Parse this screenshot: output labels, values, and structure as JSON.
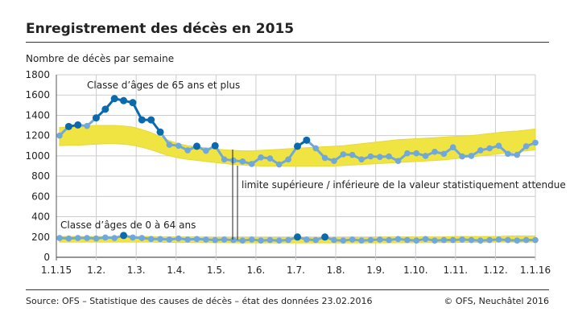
{
  "title": "Enregistrement des décès en 2015",
  "source": "Source: OFS – Statistique des causes de décès – état des données 23.02.2016",
  "copyright": "© OFS, Neuchâtel 2016",
  "chart_data": {
    "type": "line",
    "ylabel": "Nombre de décès par semaine",
    "ylim": [
      0,
      1800
    ],
    "yticks": [
      0,
      200,
      400,
      600,
      800,
      1000,
      1200,
      1400,
      1600,
      1800
    ],
    "xticks": [
      "1.1.15",
      "1.2.",
      "1.3.",
      "1.4.",
      "1.5.",
      "1.6.",
      "1.7.",
      "1.8.",
      "1.9.",
      "1.10.",
      "1.11.",
      "1.12.",
      "1.1.16"
    ],
    "grid": true,
    "annotation": "limite supérieure / inférieure de la valeur statistiquement attendue",
    "colors": {
      "line": "#0a6aad",
      "line_light": "#6fa8dc",
      "band": "#f0e442"
    },
    "series": [
      {
        "name": "Classe d’âges de 65 ans et plus",
        "values": [
          1200,
          1290,
          1305,
          1295,
          1375,
          1460,
          1565,
          1545,
          1525,
          1355,
          1355,
          1235,
          1110,
          1100,
          1055,
          1095,
          1050,
          1100,
          965,
          955,
          945,
          920,
          985,
          975,
          915,
          965,
          1095,
          1155,
          1075,
          980,
          950,
          1015,
          1010,
          965,
          995,
          990,
          995,
          950,
          1025,
          1025,
          1000,
          1040,
          1020,
          1085,
          995,
          1000,
          1055,
          1075,
          1100,
          1020,
          1010,
          1095,
          1130
        ],
        "band_upper": [
          1280,
          1285,
          1290,
          1295,
          1300,
          1300,
          1300,
          1295,
          1285,
          1260,
          1230,
          1190,
          1150,
          1120,
          1100,
          1090,
          1080,
          1070,
          1060,
          1055,
          1050,
          1050,
          1055,
          1060,
          1065,
          1070,
          1075,
          1080,
          1085,
          1090,
          1095,
          1100,
          1110,
          1120,
          1130,
          1140,
          1150,
          1160,
          1165,
          1170,
          1175,
          1180,
          1185,
          1190,
          1195,
          1200,
          1210,
          1220,
          1230,
          1240,
          1245,
          1255,
          1265
        ],
        "band_lower": [
          1100,
          1105,
          1105,
          1110,
          1115,
          1120,
          1120,
          1115,
          1105,
          1085,
          1060,
          1030,
          1000,
          980,
          965,
          955,
          945,
          935,
          925,
          915,
          910,
          905,
          900,
          900,
          900,
          900,
          900,
          900,
          900,
          900,
          900,
          905,
          910,
          915,
          920,
          925,
          930,
          935,
          940,
          945,
          950,
          955,
          960,
          970,
          980,
          990,
          1000,
          1010,
          1020,
          1030,
          1040,
          1050,
          1060
        ]
      },
      {
        "name": "Classe d’âges de 0 à 64 ans",
        "values": [
          190,
          185,
          190,
          190,
          185,
          195,
          190,
          215,
          195,
          190,
          180,
          180,
          175,
          185,
          175,
          180,
          175,
          170,
          175,
          170,
          165,
          175,
          165,
          170,
          165,
          170,
          200,
          175,
          170,
          200,
          170,
          165,
          175,
          165,
          170,
          175,
          170,
          180,
          170,
          165,
          180,
          165,
          170,
          170,
          175,
          170,
          165,
          170,
          175,
          170,
          165,
          170,
          170
        ],
        "band_upper": [
          205,
          205,
          205,
          205,
          205,
          205,
          205,
          205,
          205,
          205,
          205,
          200,
          200,
          200,
          200,
          200,
          195,
          195,
          195,
          195,
          195,
          195,
          195,
          195,
          195,
          195,
          195,
          195,
          195,
          195,
          195,
          195,
          195,
          195,
          195,
          200,
          200,
          200,
          200,
          200,
          200,
          200,
          200,
          205,
          205,
          205,
          205,
          205,
          205,
          210,
          210,
          210,
          210
        ],
        "band_lower": [
          150,
          150,
          150,
          150,
          150,
          150,
          150,
          150,
          150,
          150,
          150,
          148,
          148,
          146,
          146,
          145,
          145,
          144,
          144,
          143,
          142,
          142,
          142,
          142,
          142,
          142,
          142,
          142,
          142,
          142,
          142,
          142,
          142,
          142,
          142,
          142,
          143,
          143,
          144,
          144,
          145,
          145,
          146,
          146,
          147,
          148,
          148,
          149,
          150,
          150,
          150,
          150,
          150
        ]
      }
    ]
  }
}
